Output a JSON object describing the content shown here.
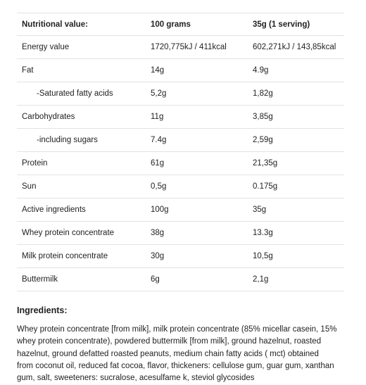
{
  "table": {
    "header": [
      "Nutritional value:",
      "100 grams",
      "35g (1 serving)"
    ],
    "rows": [
      [
        "Energy value",
        "1720,775kJ / 411kcal",
        "602,271kJ / 143,85kcal"
      ],
      [
        "Fat",
        "14g",
        "4.9g"
      ],
      [
        "-Saturated fatty acids",
        "5,2g",
        "1,82g"
      ],
      [
        "Carbohydrates",
        "11g",
        "3,85g"
      ],
      [
        "-including sugars",
        "7.4g",
        "2,59g"
      ],
      [
        "Protein",
        "61g",
        "21,35g"
      ],
      [
        "Sun",
        "0,5g",
        "0.175g"
      ],
      [
        "Active ingredients",
        "100g",
        "35g"
      ],
      [
        "Whey protein concentrate",
        "38g",
        "13.3g"
      ],
      [
        "Milk protein concentrate",
        "30g",
        "10,5g"
      ],
      [
        "Buttermilk",
        "6g",
        "2,1g"
      ]
    ]
  },
  "ingredients": {
    "title": "Ingredients:",
    "lines": [
      "Whey protein concentrate [from milk], milk protein concentrate (85% micellar casein, 15%",
      "whey protein concentrate), powdered buttermilk [from milk], ground hazelnut, roasted",
      "hazelnut, ground defatted roasted peanuts, medium chain fatty acids ( mct) obtained",
      "from coconut oil, reduced fat cocoa, flavor, thickeners: cellulose gum, guar gum, xanthan",
      "gum, salt, sweeteners: sucralose, acesulfame k, steviol glycosides"
    ]
  }
}
